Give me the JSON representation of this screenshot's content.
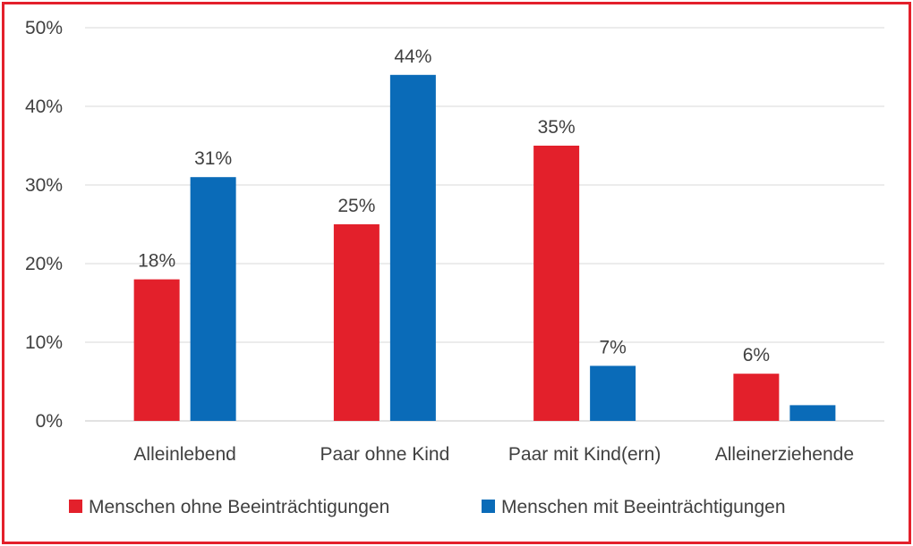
{
  "chart_data": {
    "type": "bar",
    "categories": [
      "Alleinlebend",
      "Paar ohne Kind",
      "Paar mit Kind(ern)",
      "Alleinerziehende"
    ],
    "series": [
      {
        "name": "Menschen ohne Beeinträchtigungen",
        "color": "#e3202b",
        "values": [
          18,
          25,
          35,
          6
        ],
        "labels": [
          "18%",
          "25%",
          "35%",
          "6%"
        ]
      },
      {
        "name": "Menschen mit Beeinträchtigungen",
        "color": "#0a6bb8",
        "values": [
          31,
          44,
          7,
          2
        ],
        "labels": [
          "31%",
          "44%",
          "7%",
          ""
        ]
      }
    ],
    "y_ticks": [
      "0%",
      "10%",
      "20%",
      "30%",
      "40%",
      "50%"
    ],
    "ylim": [
      0,
      50
    ],
    "grid": true,
    "legend_position": "bottom",
    "border_color": "#e3202b",
    "grid_color": "#d9d9d9"
  }
}
